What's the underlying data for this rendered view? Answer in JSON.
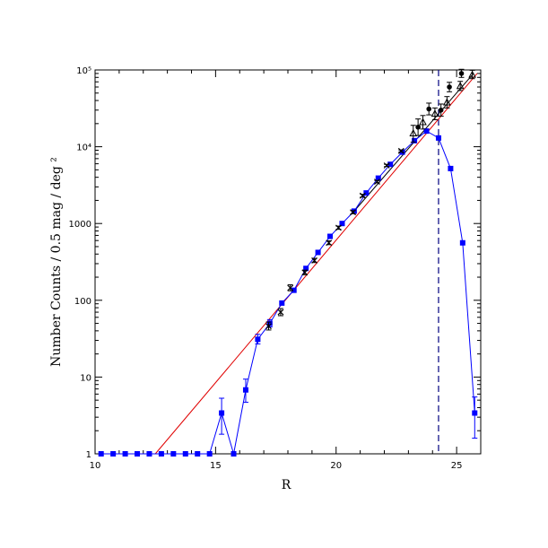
{
  "chart_data": {
    "type": "line",
    "title": "",
    "xlabel": "R",
    "ylabel": "Number Counts / 0.5 mag / deg ²",
    "xlim": [
      10,
      26
    ],
    "ylim": [
      1,
      100000
    ],
    "yscale": "log",
    "grid": false,
    "x_ticks": [
      {
        "value": 10,
        "label": "10"
      },
      {
        "value": 15,
        "label": "15"
      },
      {
        "value": 20,
        "label": "20"
      },
      {
        "value": 25,
        "label": "25"
      }
    ],
    "y_ticks": [
      {
        "value": 1,
        "label": "1"
      },
      {
        "value": 10,
        "label": "10"
      },
      {
        "value": 100,
        "label": "100"
      },
      {
        "value": 1000,
        "label": "1000"
      },
      {
        "value": 10000,
        "label": "10⁴"
      },
      {
        "value": 100000,
        "label": "10⁵"
      }
    ],
    "vertical_line": {
      "x": 24.25,
      "style": "dashed",
      "color": "#000080"
    },
    "series": [
      {
        "type": "line",
        "color": "#e00000",
        "x": [
          12.5,
          25.85
        ],
        "y": [
          1,
          90000
        ]
      },
      {
        "type": "line",
        "color": "#000000",
        "x": [
          20.75,
          25.7
        ],
        "y": [
          1450,
          90000
        ]
      },
      {
        "type": "line",
        "color": "#0000ff",
        "marker": "square",
        "x": [
          10.25,
          10.75,
          11.25,
          11.75,
          12.25,
          12.75,
          13.25,
          13.75,
          14.25,
          14.75,
          15.25,
          15.75,
          16.25,
          16.75,
          17.25,
          17.75,
          18.25,
          18.75,
          19.25,
          19.75,
          20.25,
          20.75,
          21.25,
          21.75,
          22.25,
          22.75,
          23.25,
          23.75,
          24.25,
          24.75,
          25.25,
          25.75
        ],
        "y": [
          1,
          1,
          1,
          1,
          1,
          1,
          1,
          1,
          1,
          1,
          3.4,
          1,
          6.8,
          31,
          50,
          92,
          135,
          260,
          420,
          680,
          1000,
          1450,
          2500,
          3900,
          5900,
          8500,
          12000,
          16000,
          13000,
          5200,
          560,
          3.4
        ],
        "err_lo": [
          0,
          0,
          0,
          0,
          0,
          0,
          0,
          0,
          0,
          0,
          1.6,
          0,
          2.1,
          4,
          5,
          0,
          0,
          0,
          0,
          0,
          0,
          0,
          0,
          0,
          0,
          0,
          0,
          0,
          0,
          0,
          0,
          1.8
        ],
        "err_hi": [
          0,
          0,
          0,
          0,
          0,
          0,
          0,
          0,
          0,
          0,
          1.9,
          0,
          2.6,
          5,
          6,
          0,
          0,
          0,
          0,
          0,
          0,
          0,
          0,
          0,
          0,
          0,
          0,
          0,
          0,
          0,
          0,
          2.1
        ]
      },
      {
        "type": "scatter",
        "color": "#000000",
        "marker": "cross",
        "x": [
          17.2,
          17.7,
          18.1,
          18.7,
          19.1,
          19.7,
          20.1,
          20.7,
          21.1,
          21.7,
          22.1,
          22.7
        ],
        "y": [
          46,
          70,
          145,
          230,
          330,
          560,
          880,
          1400,
          2300,
          3500,
          5700,
          8800
        ],
        "err_lo": [
          5,
          7,
          12,
          15,
          20,
          30,
          40,
          60,
          90,
          120,
          180,
          250
        ],
        "err_hi": [
          6,
          8,
          14,
          17,
          22,
          34,
          45,
          66,
          100,
          130,
          200,
          280
        ]
      },
      {
        "type": "scatter",
        "color": "#000000",
        "marker": "triangle",
        "x": [
          23.2,
          23.6,
          24.1,
          24.6,
          25.15,
          25.65
        ],
        "y": [
          15000,
          21000,
          27000,
          38000,
          62000,
          87000
        ],
        "err_lo": [
          3500,
          4000,
          4500,
          6000,
          8000,
          10000
        ],
        "err_hi": [
          4000,
          4500,
          5000,
          7000,
          9000,
          12000
        ]
      },
      {
        "type": "scatter",
        "color": "#000000",
        "marker": "filled-circle",
        "x": [
          23.4,
          23.85,
          24.35,
          24.7,
          25.2
        ],
        "y": [
          18000,
          31000,
          30000,
          60000,
          90000
        ],
        "err_lo": [
          4000,
          5000,
          5000,
          8000,
          10000
        ],
        "err_hi": [
          5000,
          6000,
          6000,
          9000,
          12000
        ]
      }
    ]
  }
}
